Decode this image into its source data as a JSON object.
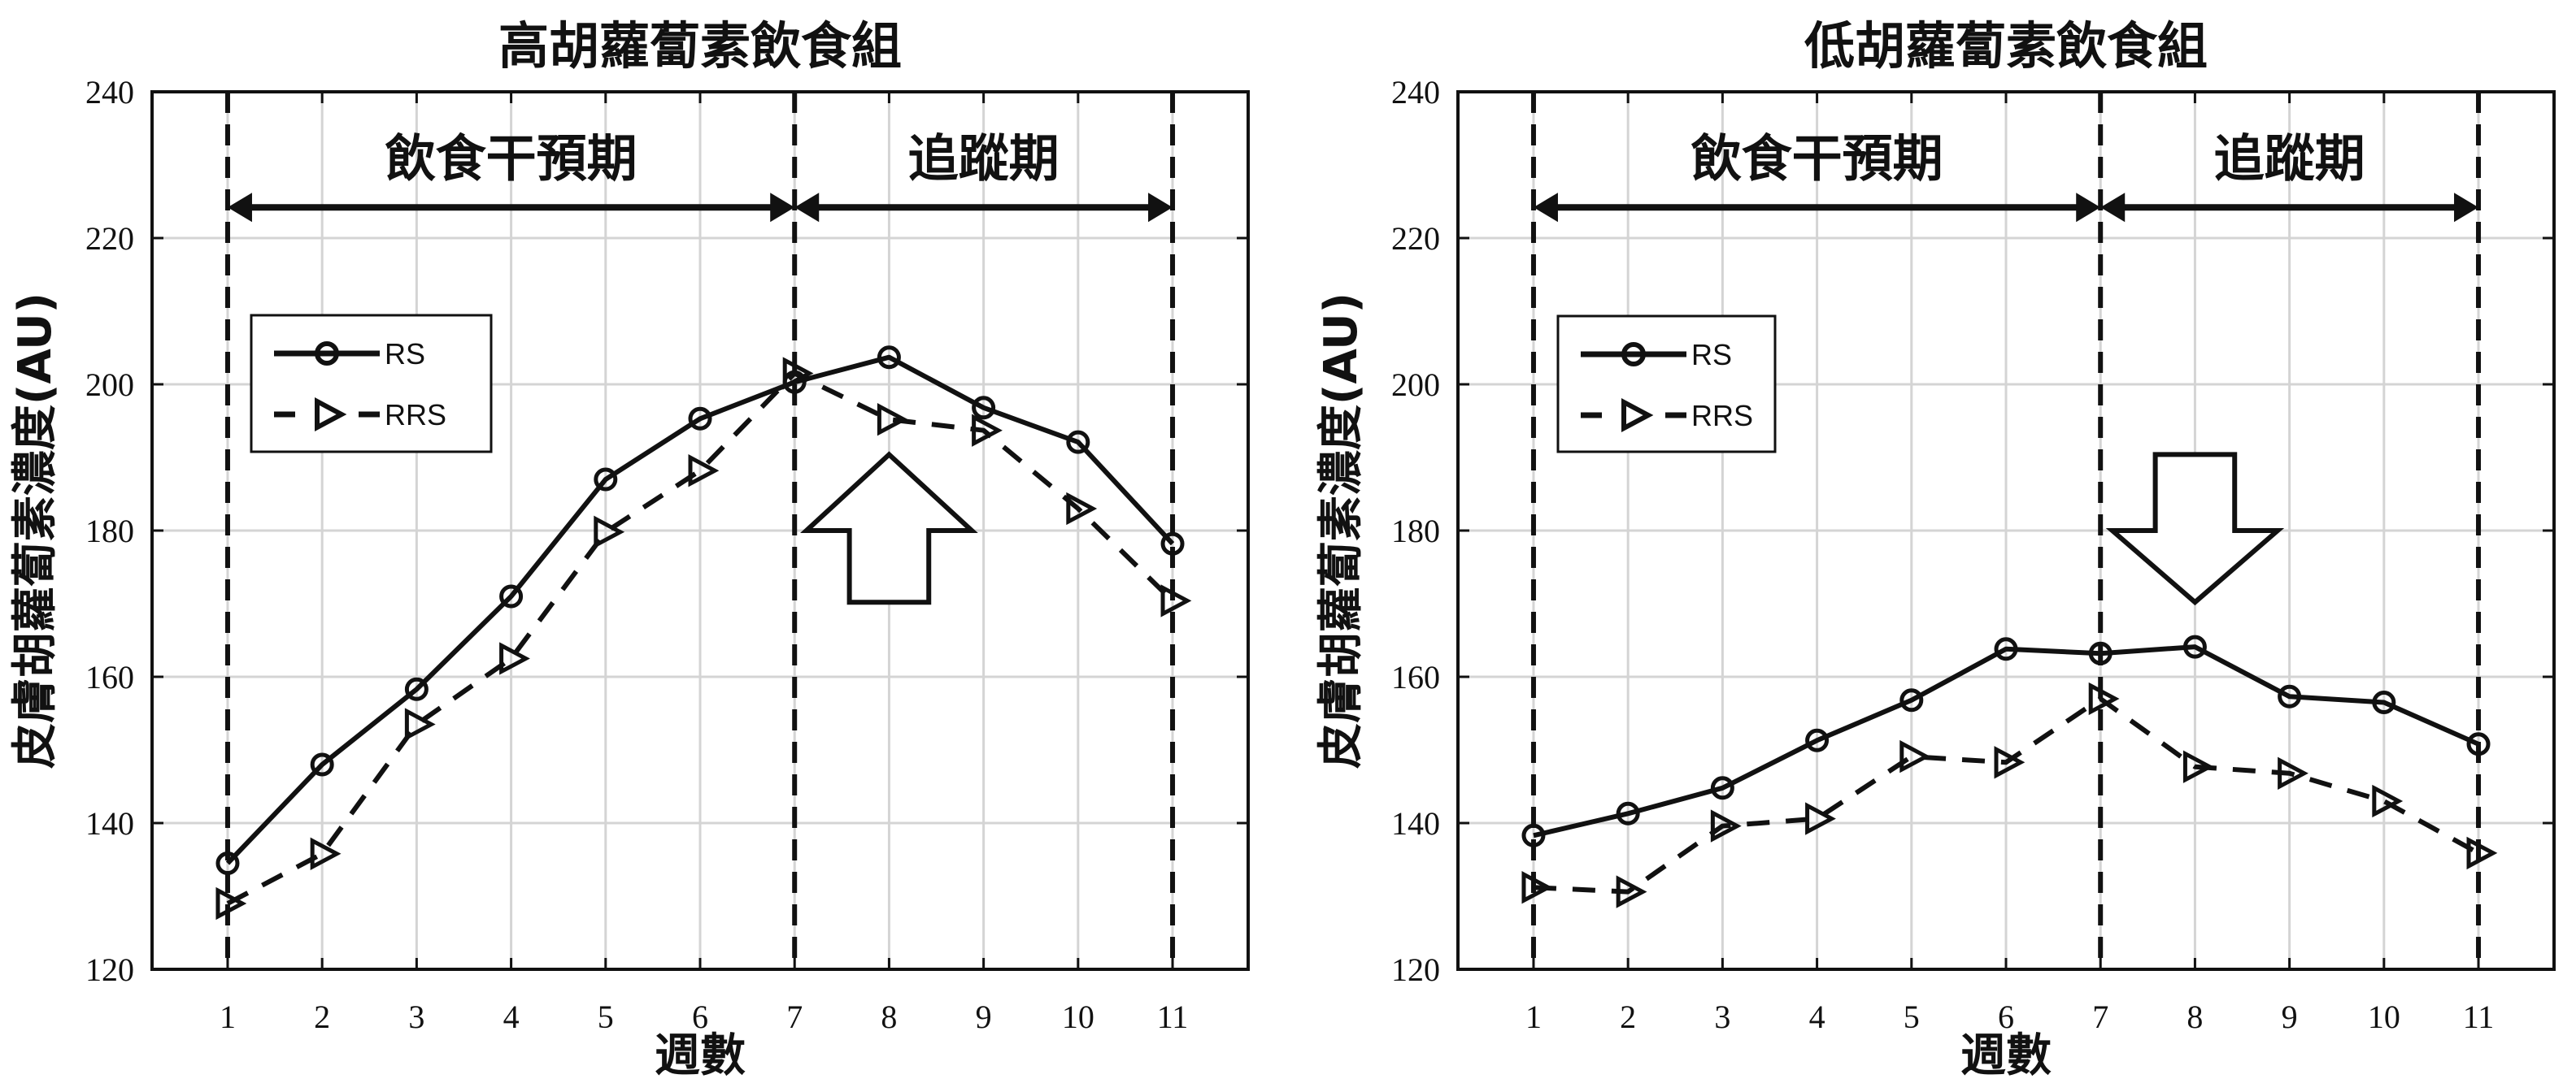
{
  "chart_data": [
    {
      "type": "line",
      "title": "高胡蘿蔔素飲食組",
      "xlabel": "週數",
      "ylabel": "皮膚胡蘿蔔素濃度(AU)",
      "x": [
        1,
        2,
        3,
        4,
        5,
        6,
        7,
        8,
        9,
        10,
        11
      ],
      "xticks": [
        "1",
        "2",
        "3",
        "4",
        "5",
        "6",
        "7",
        "8",
        "9",
        "10",
        "11"
      ],
      "yticks": [
        "120",
        "140",
        "160",
        "180",
        "200",
        "220",
        "240"
      ],
      "xlim": [
        0.2,
        11.8
      ],
      "ylim": [
        120,
        240
      ],
      "grid": true,
      "legend_position": "upper left",
      "series": [
        {
          "name": "RS",
          "style": "solid",
          "marker": "circle",
          "values": [
            134.5,
            148.0,
            158.3,
            171.0,
            187.0,
            195.3,
            200.3,
            203.7,
            196.8,
            192.1,
            178.2
          ]
        },
        {
          "name": "RRS",
          "style": "dashed",
          "marker": "triangle-right",
          "values": [
            129.0,
            135.8,
            153.5,
            162.5,
            179.8,
            188.2,
            201.5,
            195.2,
            193.7,
            183.0,
            170.4
          ]
        }
      ],
      "annotations": {
        "vlines": [
          1,
          7,
          11
        ],
        "periods": [
          {
            "label": "飲食干預期",
            "from": 1,
            "to": 7
          },
          {
            "label": "追蹤期",
            "from": 7,
            "to": 11
          }
        ],
        "block_arrow": {
          "direction": "up",
          "x": 8,
          "tip_y": 190.4,
          "wing_y": 180,
          "base_y": 170.2
        }
      }
    },
    {
      "type": "line",
      "title": "低胡蘿蔔素飲食組",
      "xlabel": "週數",
      "ylabel": "皮膚胡蘿蔔素濃度(AU)",
      "x": [
        1,
        2,
        3,
        4,
        5,
        6,
        7,
        8,
        9,
        10,
        11
      ],
      "xticks": [
        "1",
        "2",
        "3",
        "4",
        "5",
        "6",
        "7",
        "8",
        "9",
        "10",
        "11"
      ],
      "yticks": [
        "120",
        "140",
        "160",
        "180",
        "200",
        "220",
        "240"
      ],
      "xlim": [
        0.2,
        11.8
      ],
      "ylim": [
        120,
        240
      ],
      "grid": true,
      "legend_position": "upper left",
      "series": [
        {
          "name": "RS",
          "style": "solid",
          "marker": "circle",
          "values": [
            138.3,
            141.3,
            144.8,
            151.3,
            156.8,
            163.8,
            163.2,
            164.1,
            157.3,
            156.5,
            150.8
          ]
        },
        {
          "name": "RRS",
          "style": "dashed",
          "marker": "triangle-right",
          "values": [
            131.2,
            130.6,
            139.6,
            140.6,
            149.1,
            148.3,
            157.0,
            147.7,
            146.8,
            143.0,
            135.9
          ]
        }
      ],
      "annotations": {
        "vlines": [
          1,
          7,
          11
        ],
        "periods": [
          {
            "label": "飲食干預期",
            "from": 1,
            "to": 7
          },
          {
            "label": "追蹤期",
            "from": 7,
            "to": 11
          }
        ],
        "block_arrow": {
          "direction": "down",
          "x": 8,
          "tip_y": 170.2,
          "wing_y": 180,
          "base_y": 190.4
        }
      }
    }
  ],
  "colors": {
    "line": "#111111",
    "grid": "#d4d4d4",
    "axis": "#111111",
    "background": "#ffffff"
  }
}
